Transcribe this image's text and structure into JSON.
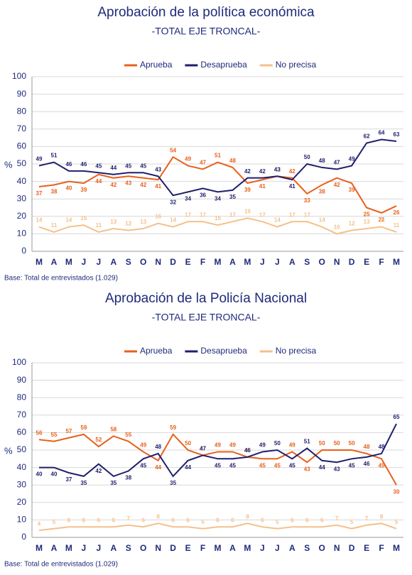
{
  "chart_data": [
    {
      "type": "line",
      "title": "Aprobación de la política económica",
      "subtitle": "-TOTAL EJE TRONCAL-",
      "ylabel": "%",
      "note": "Base: Total de entrevistados (1.029)",
      "legend": "top",
      "grid": true,
      "categories": [
        "M",
        "A",
        "M",
        "J",
        "J",
        "A",
        "S",
        "O",
        "N",
        "D",
        "E",
        "F",
        "M",
        "A",
        "M",
        "J",
        "J",
        "A",
        "S",
        "O",
        "N",
        "D",
        "E",
        "F",
        "M"
      ],
      "ylim": [
        0,
        100
      ],
      "yticks": [
        0,
        10,
        20,
        30,
        40,
        50,
        60,
        70,
        80,
        90,
        100
      ],
      "series": [
        {
          "name": "Aprueba",
          "color": "#e8601c",
          "values": [
            37,
            38,
            40,
            39,
            44,
            42,
            43,
            42,
            41,
            54,
            49,
            47,
            51,
            48,
            39,
            41,
            43,
            42,
            33,
            38,
            42,
            39,
            25,
            22,
            26
          ]
        },
        {
          "name": "Desaprueba",
          "color": "#1f1f6e",
          "values": [
            49,
            51,
            46,
            46,
            45,
            44,
            45,
            45,
            43,
            32,
            34,
            36,
            34,
            35,
            42,
            42,
            43,
            41,
            50,
            48,
            47,
            49,
            62,
            64,
            63
          ]
        },
        {
          "name": "No precisa",
          "color": "#f5c08a",
          "values": [
            14,
            11,
            14,
            15,
            11,
            13,
            12,
            13,
            16,
            14,
            17,
            17,
            15,
            17,
            19,
            17,
            14,
            17,
            17,
            14,
            10,
            12,
            13,
            14,
            11
          ]
        }
      ]
    },
    {
      "type": "line",
      "title": "Aprobación de la Policía Nacional",
      "subtitle": "-TOTAL EJE TRONCAL-",
      "ylabel": "%",
      "note": "Base: Total de entrevistados (1.029)",
      "legend": "top",
      "grid": true,
      "categories": [
        "M",
        "A",
        "M",
        "J",
        "J",
        "A",
        "S",
        "O",
        "N",
        "D",
        "E",
        "F",
        "M",
        "A",
        "M",
        "J",
        "J",
        "A",
        "S",
        "O",
        "N",
        "D",
        "E",
        "F",
        "M"
      ],
      "ylim": [
        0,
        100
      ],
      "yticks": [
        0,
        10,
        20,
        30,
        40,
        50,
        60,
        70,
        80,
        90,
        100
      ],
      "series": [
        {
          "name": "Aprueba",
          "color": "#e8601c",
          "values": [
            56,
            55,
            57,
            59,
            52,
            58,
            55,
            49,
            44,
            59,
            50,
            47,
            49,
            49,
            46,
            45,
            45,
            49,
            43,
            50,
            50,
            50,
            48,
            45,
            30
          ]
        },
        {
          "name": "Desaprueba",
          "color": "#1f1f6e",
          "values": [
            40,
            40,
            37,
            35,
            42,
            35,
            38,
            45,
            48,
            35,
            44,
            47,
            45,
            45,
            46,
            49,
            50,
            45,
            51,
            44,
            43,
            45,
            46,
            48,
            65
          ]
        },
        {
          "name": "No precisa",
          "color": "#f5c08a",
          "values": [
            4,
            5,
            6,
            6,
            6,
            6,
            7,
            6,
            8,
            6,
            6,
            5,
            6,
            6,
            8,
            6,
            5,
            6,
            6,
            6,
            7,
            5,
            7,
            8,
            5
          ]
        }
      ]
    }
  ]
}
